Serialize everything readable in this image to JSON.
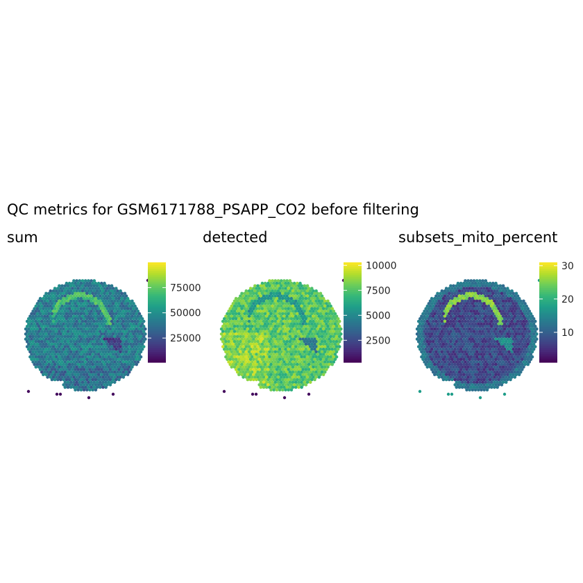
{
  "title": "QC metrics for GSM6171788_PSAPP_CO2 before filtering",
  "palette": [
    "#440154",
    "#482878",
    "#3e4a89",
    "#31688e",
    "#26828e",
    "#1f9e89",
    "#35b779",
    "#6dcd59",
    "#b4de2c",
    "#fde725"
  ],
  "chart_data": [
    {
      "type": "heatmap",
      "title": "sum",
      "legend_placement": "right",
      "range": [
        1000,
        100000
      ],
      "ticks": [
        25000,
        50000,
        75000
      ],
      "tick_labels": [
        "25000",
        "50000",
        "75000"
      ],
      "pattern": "sum"
    },
    {
      "type": "heatmap",
      "title": "detected",
      "legend_placement": "right",
      "range": [
        300,
        10300
      ],
      "ticks": [
        2500,
        5000,
        7500,
        10000
      ],
      "tick_labels": [
        "2500",
        "5000",
        "7500",
        "10000"
      ],
      "pattern": "detected"
    },
    {
      "type": "heatmap",
      "title": "subsets_mito_percent",
      "legend_placement": "right",
      "range": [
        1,
        31
      ],
      "ticks": [
        10,
        20,
        30
      ],
      "tick_labels": [
        "10",
        "20",
        "30"
      ],
      "pattern": "mito"
    }
  ]
}
